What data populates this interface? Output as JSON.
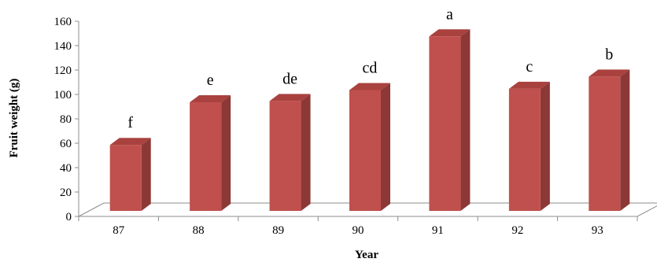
{
  "chart_data": {
    "type": "bar",
    "categories": [
      "87",
      "88",
      "89",
      "90",
      "91",
      "92",
      "93"
    ],
    "values": [
      56,
      91,
      92,
      101,
      145,
      102,
      112
    ],
    "data_labels": [
      "f",
      "e",
      "de",
      "cd",
      "a",
      "c",
      "b"
    ],
    "xlabel": "Year",
    "ylabel": "Fruit weight (g)",
    "ylim": [
      0,
      160
    ],
    "yticks": [
      "0",
      "20",
      "40",
      "60",
      "80",
      "100",
      "120",
      "140",
      "160"
    ],
    "grid": false,
    "legend": "none",
    "colors": {
      "bar_front": "#c0504d",
      "bar_side": "#8c3836",
      "bar_top": "#a9423f",
      "axis": "#8c8c8c"
    }
  }
}
